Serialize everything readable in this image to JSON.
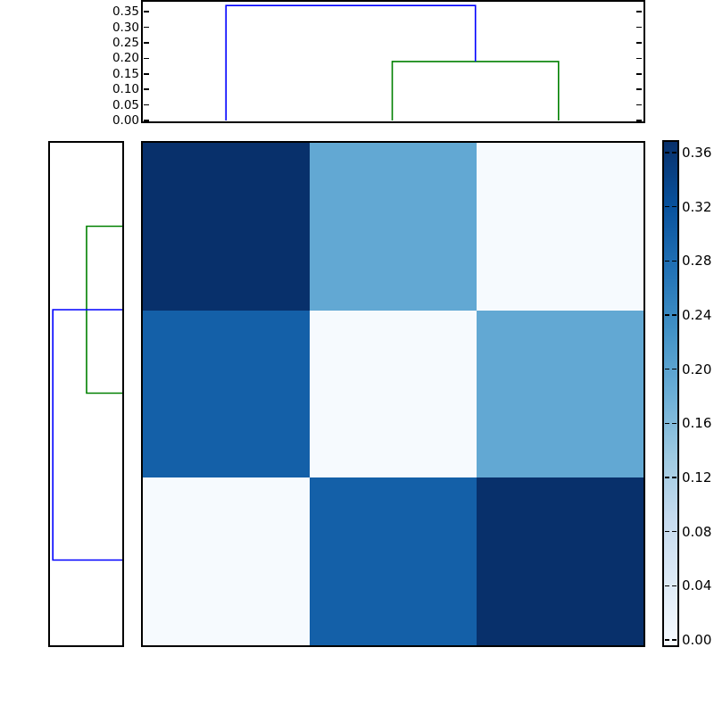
{
  "figure": {
    "background": "#ffffff",
    "frame_color": "#000000",
    "description": "hierarchically-clustered heatmap with top and left dendrograms and colorbar"
  },
  "chart_data": {
    "type": "heatmap",
    "title": "",
    "xlabel": "",
    "ylabel": "",
    "grid": false,
    "matrix": {
      "n_rows": 3,
      "n_cols": 3,
      "values": [
        [
          0.37,
          0.19,
          0.0
        ],
        [
          0.29,
          0.0,
          0.19
        ],
        [
          0.0,
          0.29,
          0.37
        ]
      ],
      "cell_colors": [
        [
          "#08306b",
          "#62a8d3",
          "#f6fafe"
        ],
        [
          "#1460a8",
          "#f6fafe",
          "#62a8d3"
        ],
        [
          "#f6fafe",
          "#1460a8",
          "#08306b"
        ]
      ]
    },
    "colormap": {
      "name": "Blues",
      "vmin": 0.0,
      "vmax": 0.36,
      "gradient_stops": [
        [
          0,
          "#f7fbff"
        ],
        [
          12.5,
          "#deebf7"
        ],
        [
          25,
          "#c6dbef"
        ],
        [
          37.5,
          "#9ecae1"
        ],
        [
          50,
          "#6baed6"
        ],
        [
          62.5,
          "#4292c6"
        ],
        [
          75,
          "#2171b5"
        ],
        [
          87.5,
          "#08519c"
        ],
        [
          100,
          "#08306b"
        ]
      ]
    },
    "dendrogram_top": {
      "axis_max": 0.385,
      "axis_ticks": [
        {
          "label": "0.35",
          "value": 0.35
        },
        {
          "label": "0.30",
          "value": 0.3
        },
        {
          "label": "0.25",
          "value": 0.25
        },
        {
          "label": "0.20",
          "value": 0.2
        },
        {
          "label": "0.15",
          "value": 0.15
        },
        {
          "label": "0.10",
          "value": 0.1
        },
        {
          "label": "0.05",
          "value": 0.05
        },
        {
          "label": "0.00",
          "value": 0.0
        }
      ],
      "links": [
        {
          "type": "pair",
          "leaves": [
            1,
            2
          ],
          "height": 0.19,
          "color": "#008000"
        },
        {
          "type": "root",
          "leaf": 0,
          "height": 0.37,
          "color": "#0000ff"
        }
      ]
    },
    "dendrogram_left": {
      "axis_max": 0.385,
      "links": [
        {
          "type": "pair",
          "leaves": [
            0,
            1
          ],
          "height": 0.19,
          "color": "#008000"
        },
        {
          "type": "root",
          "leaf": 2,
          "height": 0.37,
          "color": "#0000ff"
        }
      ]
    },
    "colorbar": {
      "ticks": [
        {
          "label": "0.36",
          "value": 0.36
        },
        {
          "label": "0.32",
          "value": 0.32
        },
        {
          "label": "0.28",
          "value": 0.28
        },
        {
          "label": "0.24",
          "value": 0.24
        },
        {
          "label": "0.20",
          "value": 0.2
        },
        {
          "label": "0.16",
          "value": 0.16
        },
        {
          "label": "0.12",
          "value": 0.12
        },
        {
          "label": "0.08",
          "value": 0.08
        },
        {
          "label": "0.04",
          "value": 0.04
        },
        {
          "label": "0.00",
          "value": 0.0
        }
      ]
    }
  }
}
